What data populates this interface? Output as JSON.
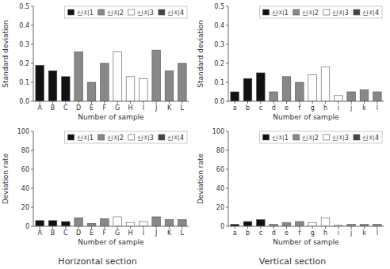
{
  "chart_data": [
    {
      "type": "bar",
      "xlabel": "Number of sample",
      "ylabel": "Standard deviation",
      "categories": [
        "A",
        "B",
        "C",
        "D",
        "E",
        "F",
        "G",
        "H",
        "I",
        "J",
        "K",
        "L"
      ],
      "series": [
        {
          "name": "산지1",
          "color": "#111111",
          "values": [
            0.19,
            0.16,
            0.13,
            null,
            null,
            null,
            null,
            null,
            null,
            null,
            null,
            null
          ]
        },
        {
          "name": "산지2",
          "color": "#888888",
          "values": [
            null,
            null,
            null,
            0.26,
            0.1,
            0.2,
            null,
            null,
            null,
            0.27,
            0.16,
            0.2
          ]
        },
        {
          "name": "산지3",
          "color": "#ffffff",
          "values": [
            null,
            null,
            null,
            null,
            null,
            null,
            0.26,
            0.13,
            0.12,
            null,
            null,
            null
          ]
        },
        {
          "name": "산지4",
          "color": "#444444",
          "values": [
            null,
            null,
            null,
            null,
            null,
            null,
            null,
            null,
            null,
            null,
            null,
            null
          ]
        }
      ],
      "stacked": true,
      "grid": false,
      "legend": "upper right",
      "ylim": [
        0,
        0.5
      ],
      "yticks": [
        {
          "value": 0,
          "label": "0.0"
        },
        0.1,
        0.2,
        0.3,
        0.4,
        0.5
      ]
    },
    {
      "type": "bar",
      "xlabel": "Number of sample",
      "ylabel": "Standard deviation",
      "categories": [
        "a",
        "b",
        "c",
        "d",
        "e",
        "f",
        "g",
        "h",
        "i",
        "j",
        "k",
        "l"
      ],
      "series": [
        {
          "name": "산지1",
          "color": "#111111",
          "values": [
            0.05,
            0.12,
            0.15,
            null,
            null,
            null,
            null,
            null,
            null,
            null,
            null,
            null
          ]
        },
        {
          "name": "산지2",
          "color": "#888888",
          "values": [
            null,
            null,
            null,
            0.05,
            0.13,
            0.1,
            null,
            null,
            null,
            0.05,
            0.06,
            0.05
          ]
        },
        {
          "name": "산지3",
          "color": "#ffffff",
          "values": [
            null,
            null,
            null,
            null,
            null,
            null,
            0.14,
            0.18,
            0.03,
            null,
            null,
            null
          ]
        },
        {
          "name": "산지4",
          "color": "#444444",
          "values": [
            null,
            null,
            null,
            null,
            null,
            null,
            null,
            null,
            null,
            null,
            null,
            null
          ]
        }
      ],
      "stacked": true,
      "grid": false,
      "legend": "upper right",
      "ylim": [
        0,
        0.5
      ],
      "yticks": [
        {
          "value": 0,
          "label": "0.0"
        },
        0.1,
        0.2,
        0.3,
        0.4,
        0.5
      ]
    },
    {
      "type": "bar",
      "xlabel": "Number of sample",
      "ylabel": "Deviation rate",
      "categories": [
        "A",
        "B",
        "C",
        "D",
        "E",
        "F",
        "G",
        "H",
        "I",
        "J",
        "K",
        "L"
      ],
      "series": [
        {
          "name": "산지1",
          "color": "#111111",
          "values": [
            6,
            6,
            5,
            null,
            null,
            null,
            null,
            null,
            null,
            null,
            null,
            null
          ]
        },
        {
          "name": "산지2",
          "color": "#888888",
          "values": [
            null,
            null,
            null,
            9,
            3,
            8,
            null,
            null,
            null,
            10,
            7,
            7
          ]
        },
        {
          "name": "산지3",
          "color": "#ffffff",
          "values": [
            null,
            null,
            null,
            null,
            null,
            null,
            10,
            4,
            5,
            null,
            null,
            null
          ]
        },
        {
          "name": "산지4",
          "color": "#444444",
          "values": [
            null,
            null,
            null,
            null,
            null,
            null,
            null,
            null,
            null,
            null,
            null,
            null
          ]
        }
      ],
      "stacked": true,
      "grid": false,
      "legend": "upper right",
      "ylim": [
        0,
        100
      ],
      "yticks": [
        0,
        20,
        40,
        60,
        80,
        100
      ],
      "annotations": [
        "Horizontal section"
      ]
    },
    {
      "type": "bar",
      "xlabel": "Number of sample",
      "ylabel": "Deviation rate",
      "categories": [
        "a",
        "b",
        "c",
        "d",
        "e",
        "f",
        "g",
        "h",
        "i",
        "j",
        "k",
        "l"
      ],
      "series": [
        {
          "name": "산지1",
          "color": "#111111",
          "values": [
            2,
            5,
            7,
            null,
            null,
            null,
            null,
            null,
            null,
            null,
            null,
            null
          ]
        },
        {
          "name": "산지2",
          "color": "#888888",
          "values": [
            null,
            null,
            null,
            2,
            4,
            5,
            null,
            null,
            null,
            2,
            2,
            2
          ]
        },
        {
          "name": "산지3",
          "color": "#ffffff",
          "values": [
            null,
            null,
            null,
            null,
            null,
            null,
            4,
            9,
            1,
            null,
            null,
            null
          ]
        },
        {
          "name": "산지4",
          "color": "#444444",
          "values": [
            null,
            null,
            null,
            null,
            null,
            null,
            null,
            null,
            null,
            null,
            null,
            null
          ]
        }
      ],
      "stacked": true,
      "grid": false,
      "legend": "upper right",
      "ylim": [
        0,
        100
      ],
      "yticks": [
        0,
        20,
        40,
        60,
        80,
        100
      ],
      "annotations": [
        "Vertical section"
      ]
    }
  ]
}
